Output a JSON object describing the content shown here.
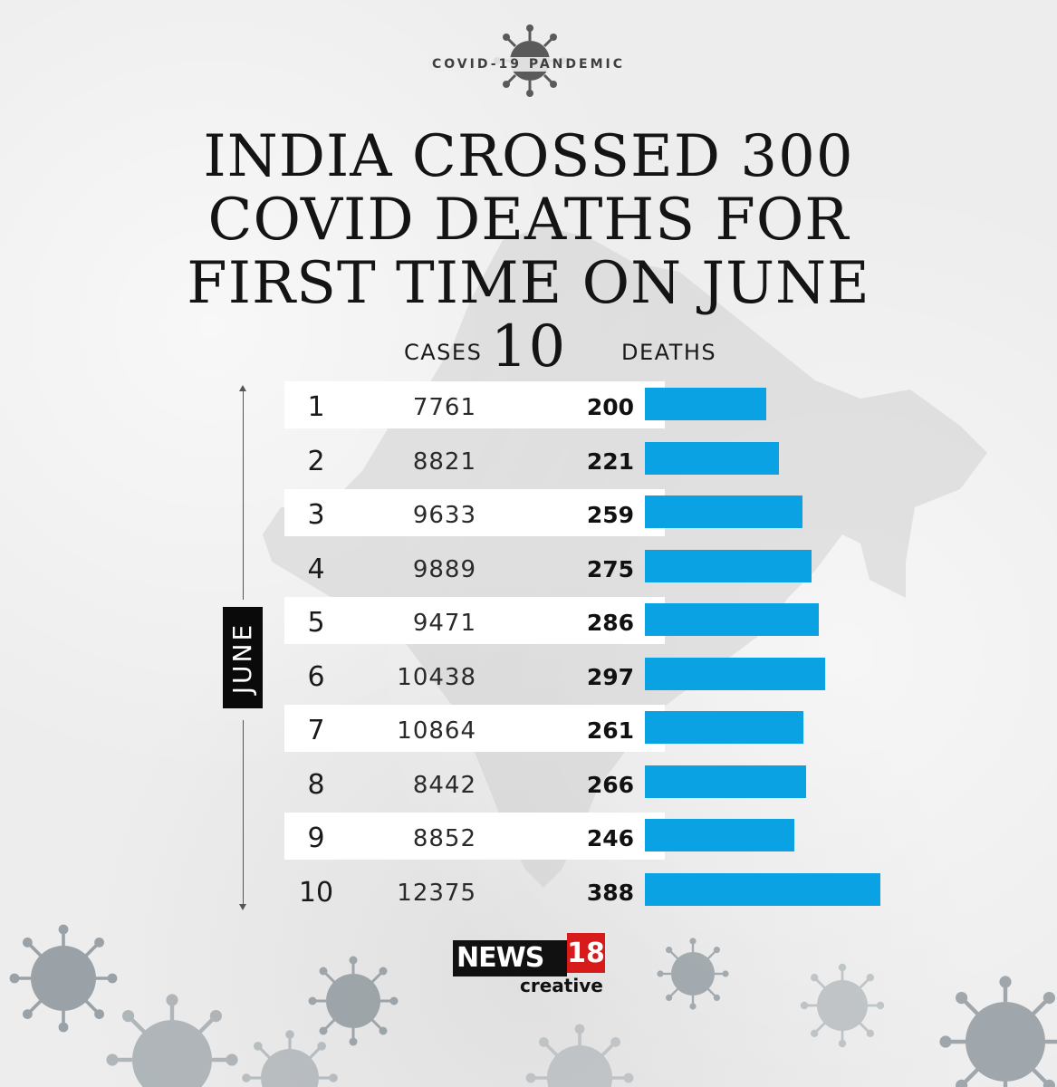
{
  "header": {
    "kicker": "COVID-19 PANDEMIC",
    "title": "INDIA CROSSED 300 COVID DEATHS FOR FIRST TIME ON JUNE 10"
  },
  "columns": {
    "cases": "CASES",
    "deaths": "DEATHS"
  },
  "month_label": "JUNE",
  "logo": {
    "main": "NEWS",
    "number": "18",
    "sub": "creative"
  },
  "chart_data": {
    "type": "bar",
    "title": "INDIA CROSSED 300 COVID DEATHS FOR FIRST TIME ON JUNE 10",
    "xlabel": "JUNE",
    "ylabel": "DEATHS",
    "categories": [
      "1",
      "2",
      "3",
      "4",
      "5",
      "6",
      "7",
      "8",
      "9",
      "10"
    ],
    "series": [
      {
        "name": "CASES",
        "values": [
          7761,
          8821,
          9633,
          9889,
          9471,
          10438,
          10864,
          8442,
          8852,
          12375
        ]
      },
      {
        "name": "DEATHS",
        "values": [
          200,
          221,
          259,
          275,
          286,
          297,
          261,
          266,
          246,
          388
        ]
      }
    ],
    "bar_color": "#0ba2e3"
  }
}
